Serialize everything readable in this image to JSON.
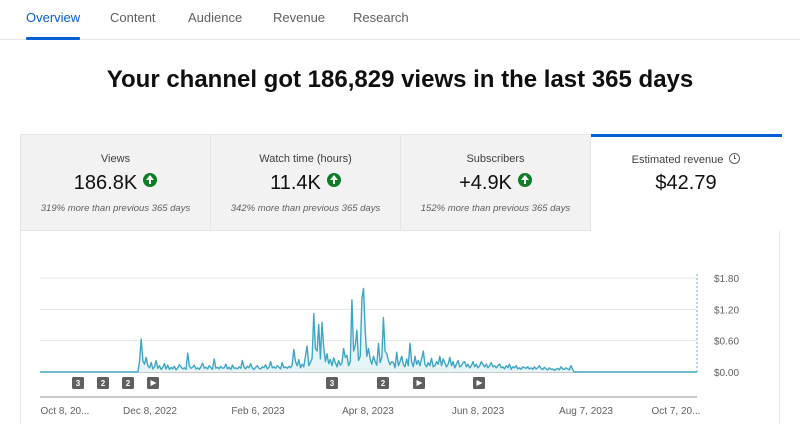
{
  "tabs": [
    {
      "label": "Overview",
      "active": true
    },
    {
      "label": "Content",
      "active": false
    },
    {
      "label": "Audience",
      "active": false
    },
    {
      "label": "Revenue",
      "active": false
    },
    {
      "label": "Research",
      "active": false
    }
  ],
  "headline": "Your channel got 186,829 views in the last 365 days",
  "metrics": [
    {
      "label": "Views",
      "value": "186.8K",
      "trend_icon": "arrow-up-circle-icon",
      "note": "319% more than previous 365 days"
    },
    {
      "label": "Watch time (hours)",
      "value": "11.4K",
      "trend_icon": "arrow-up-circle-icon",
      "note": "342% more than previous 365 days"
    },
    {
      "label": "Subscribers",
      "value": "+4.9K",
      "trend_icon": "arrow-up-circle-icon",
      "note": "152% more than previous 365 days"
    },
    {
      "label": "Estimated revenue",
      "value": "$42.79",
      "info_icon": "clock-icon",
      "selected": true
    }
  ],
  "colors": {
    "accent": "#065fd4",
    "line": "#3ea6c4",
    "fill": "#e6f4f8",
    "trend_up": "#0f7d27"
  },
  "chart_data": {
    "type": "line",
    "series": [
      {
        "values": [
          0,
          0,
          0,
          0,
          0,
          0,
          0,
          0,
          0,
          0,
          0,
          0,
          0,
          0,
          0,
          0,
          0,
          0,
          0,
          0,
          0,
          0,
          0,
          0,
          0,
          0,
          0,
          0,
          0,
          0,
          0,
          0,
          0,
          0,
          0,
          0,
          0,
          0,
          0,
          0,
          0,
          0,
          0,
          0,
          0,
          0,
          0,
          0,
          0,
          0,
          0,
          0,
          0,
          0,
          0,
          0,
          0,
          0,
          0,
          0,
          0.2,
          0.63,
          0.21,
          0.15,
          0.28,
          0.12,
          0.08,
          0.18,
          0.06,
          0.1,
          0.22,
          0.07,
          0.12,
          0.05,
          0.09,
          0.16,
          0.06,
          0.13,
          0.05,
          0.09,
          0.06,
          0.11,
          0.04,
          0.08,
          0.14,
          0.1,
          0.06,
          0.08,
          0.05,
          0.36,
          0.12,
          0.07,
          0.09,
          0.13,
          0.06,
          0.08,
          0.05,
          0.1,
          0.17,
          0.07,
          0.09,
          0.06,
          0.12,
          0.08,
          0.05,
          0.25,
          0.07,
          0.09,
          0.06,
          0.11,
          0.07,
          0.08,
          0.15,
          0.06,
          0.09,
          0.05,
          0.13,
          0.07,
          0.08,
          0.06,
          0.1,
          0.07,
          0.22,
          0.09,
          0.06,
          0.11,
          0.08,
          0.16,
          0.07,
          0.05,
          0.09,
          0.12,
          0.07,
          0.06,
          0.1,
          0.08,
          0.14,
          0.06,
          0.09,
          0.2,
          0.08,
          0.1,
          0.07,
          0.12,
          0.09,
          0.06,
          0.18,
          0.08,
          0.1,
          0.07,
          0.11,
          0.08,
          0.14,
          0.43,
          0.2,
          0.12,
          0.24,
          0.08,
          0.15,
          0.1,
          0.31,
          0.5,
          0.12,
          0.18,
          0.26,
          1.12,
          0.45,
          0.4,
          0.91,
          0.25,
          0.95,
          0.48,
          0.2,
          0.35,
          0.16,
          0.24,
          0.12,
          0.27,
          0.18,
          0.1,
          0.22,
          0.13,
          0.18,
          0.45,
          0.28,
          0.32,
          0.12,
          0.2,
          1.38,
          0.4,
          0.5,
          0.8,
          0.22,
          0.3,
          1.4,
          1.6,
          0.8,
          0.3,
          0.45,
          0.25,
          0.15,
          0.3,
          0.2,
          0.13,
          0.55,
          0.18,
          0.28,
          1.04,
          0.4,
          0.35,
          0.22,
          0.14,
          0.2,
          0.18,
          0.08,
          0.38,
          0.12,
          0.2,
          0.3,
          0.15,
          0.1,
          0.25,
          0.12,
          0.55,
          0.2,
          0.1,
          0.3,
          0.15,
          0.22,
          0.12,
          0.25,
          0.4,
          0.15,
          0.1,
          0.18,
          0.12,
          0.26,
          0.1,
          0.12,
          0.2,
          0.15,
          0.3,
          0.12,
          0.25,
          0.18,
          0.1,
          0.15,
          0.28,
          0.12,
          0.2,
          0.08,
          0.15,
          0.22,
          0.1,
          0.12,
          0.18,
          0.2,
          0.1,
          0.15,
          0.08,
          0.12,
          0.2,
          0.1,
          0.15,
          0.08,
          0.12,
          0.2,
          0.14,
          0.1,
          0.15,
          0.08,
          0.12,
          0.18,
          0.1,
          0.12,
          0.08,
          0.12,
          0.15,
          0.08,
          0.1,
          0.06,
          0.12,
          0.08,
          0.15,
          0.05,
          0.1,
          0.08,
          0.12,
          0.06,
          0.08,
          0.05,
          0.1,
          0.08,
          0.07,
          0.1,
          0.06,
          0.08,
          0.05,
          0.1,
          0.06,
          0.08,
          0.12,
          0.07,
          0.05,
          0.09,
          0.06,
          0.04,
          0.08,
          0.05,
          0.06,
          0.03,
          0.05,
          0.07,
          0.04,
          0.1,
          0.06,
          0.05,
          0.08,
          0.06,
          0.04,
          0.12,
          0.05,
          0,
          0,
          0,
          0,
          0,
          0,
          0,
          0,
          0,
          0,
          0,
          0,
          0,
          0,
          0,
          0,
          0,
          0,
          0,
          0,
          0,
          0,
          0,
          0,
          0,
          0,
          0,
          0,
          0,
          0,
          0,
          0,
          0,
          0,
          0,
          0,
          0,
          0,
          0,
          0,
          0,
          0,
          0,
          0,
          0,
          0,
          0,
          0,
          0,
          0,
          0,
          0,
          0,
          0,
          0,
          0,
          0,
          0,
          0,
          0,
          0,
          0,
          0,
          0,
          0,
          0,
          0,
          0,
          0,
          0,
          0,
          0,
          0,
          0,
          0
        ]
      }
    ],
    "x_tick_labels": [
      "Oct 8, 20...",
      "Dec 8, 2022",
      "Feb 6, 2023",
      "Apr 8, 2023",
      "Jun 8, 2023",
      "Aug 7, 2023",
      "Oct 7, 20..."
    ],
    "y_tick_labels": [
      "$1.80",
      "$1.20",
      "$0.60",
      "$0.00"
    ],
    "ylim": [
      0,
      1.8
    ],
    "grid": true,
    "markers": [
      {
        "label": "3",
        "kind": "count"
      },
      {
        "label": "2",
        "kind": "count"
      },
      {
        "label": "2",
        "kind": "count"
      },
      {
        "label": "",
        "kind": "play"
      },
      {
        "label": "3",
        "kind": "count"
      },
      {
        "label": "2",
        "kind": "count"
      },
      {
        "label": "",
        "kind": "play"
      },
      {
        "label": "",
        "kind": "play"
      }
    ]
  }
}
